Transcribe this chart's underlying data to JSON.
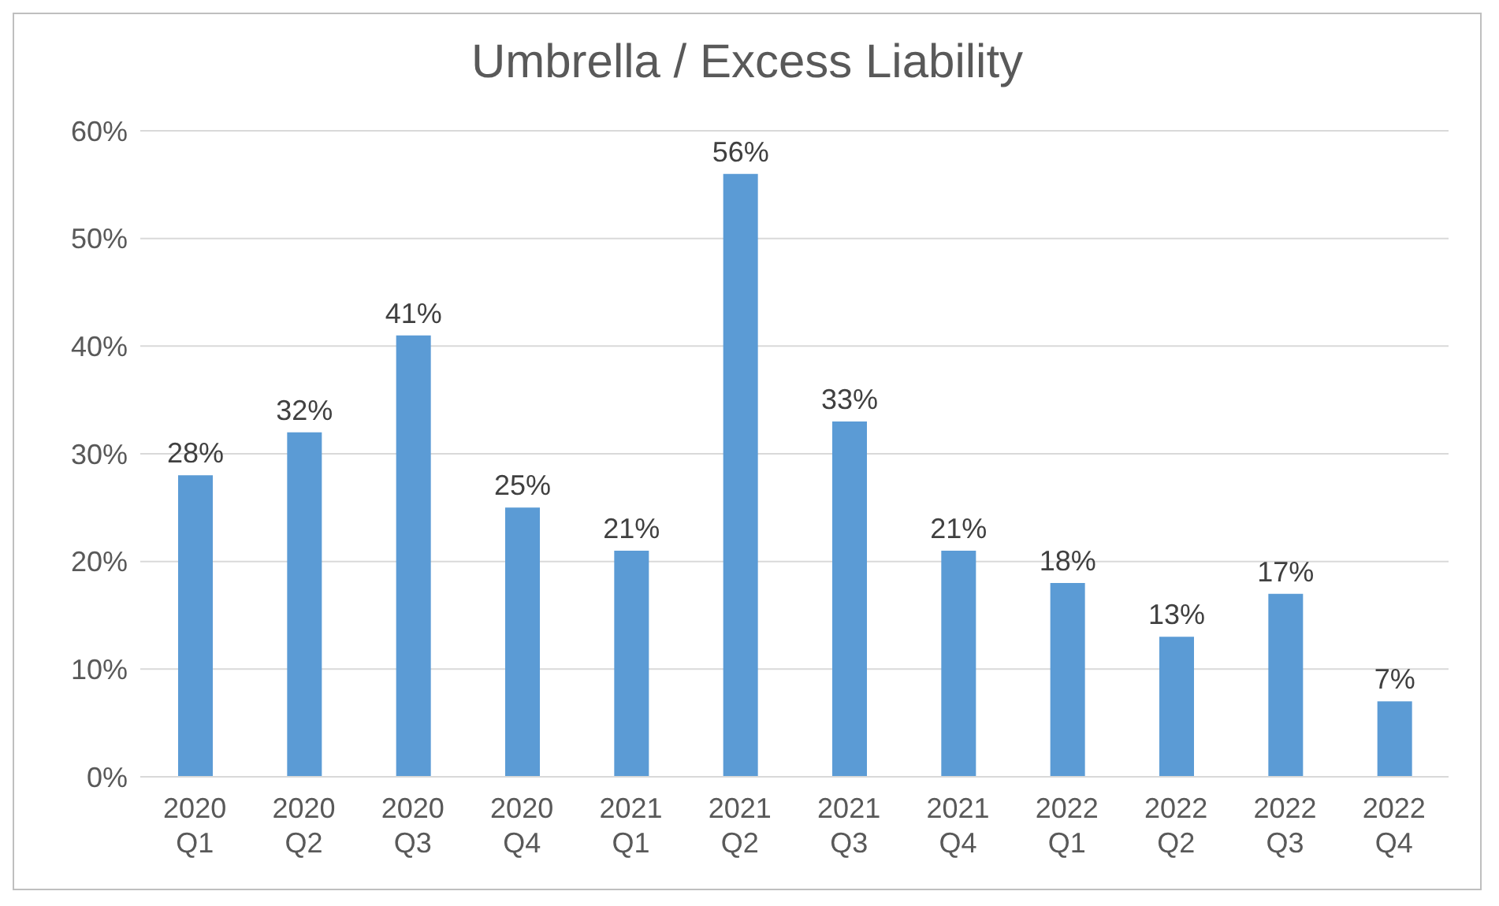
{
  "chart_data": {
    "type": "bar",
    "title": "Umbrella / Excess Liability",
    "categories": [
      "2020\nQ1",
      "2020\nQ2",
      "2020\nQ3",
      "2020\nQ4",
      "2021\nQ1",
      "2021\nQ2",
      "2021\nQ3",
      "2021\nQ4",
      "2022\nQ1",
      "2022\nQ2",
      "2022\nQ3",
      "2022\nQ4"
    ],
    "values": [
      28,
      32,
      41,
      25,
      21,
      56,
      33,
      21,
      18,
      13,
      17,
      7
    ],
    "value_labels": [
      "28%",
      "32%",
      "41%",
      "25%",
      "21%",
      "56%",
      "33%",
      "21%",
      "18%",
      "13%",
      "17%",
      "7%"
    ],
    "color": "#5b9bd5",
    "ylim": [
      0,
      60
    ],
    "yticks": [
      {
        "value": 0,
        "label": "0%"
      },
      {
        "value": 10,
        "label": "10%"
      },
      {
        "value": 20,
        "label": "20%"
      },
      {
        "value": 30,
        "label": "30%"
      },
      {
        "value": 40,
        "label": "40%"
      },
      {
        "value": 50,
        "label": "50%"
      },
      {
        "value": 60,
        "label": "60%"
      }
    ],
    "grid": "y",
    "legend": false
  }
}
